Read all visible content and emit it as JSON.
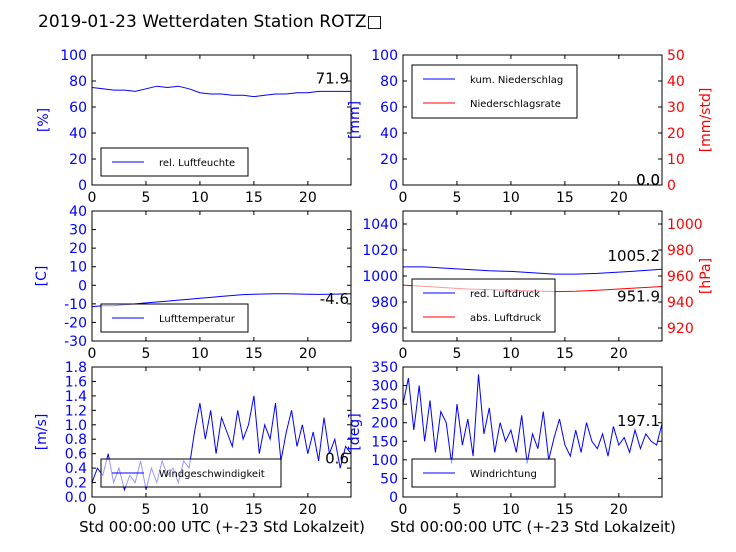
{
  "title": "2019-01-23 Wetterdaten Station ROTZ□",
  "xlabel": "Std 00:00:00 UTC (+-23 Std Lokalzeit)",
  "colors": {
    "primary": "#0000ff",
    "secondary": "#ff0000",
    "light": "#8080ff"
  },
  "chart_data": [
    {
      "id": "humidity",
      "type": "line",
      "ylabel": "[%]",
      "ylim": [
        0,
        100
      ],
      "yticks": [
        0,
        20,
        40,
        60,
        80,
        100
      ],
      "xlim": [
        0,
        24
      ],
      "xticks": [
        0,
        5,
        10,
        15,
        20
      ],
      "value_label": "71.9",
      "legend": "bottom-left",
      "series": [
        {
          "name": "rel. Luftfeuchte",
          "color": "#0000ff",
          "x": [
            0,
            1,
            2,
            3,
            4,
            5,
            6,
            7,
            8,
            9,
            10,
            11,
            12,
            13,
            14,
            15,
            16,
            17,
            18,
            19,
            20,
            21,
            22,
            24
          ],
          "y": [
            75,
            74,
            73,
            73,
            72,
            74,
            76,
            75,
            76,
            74,
            71,
            70,
            70,
            69,
            69,
            68,
            69,
            70,
            70,
            71,
            71,
            72,
            72,
            72
          ]
        }
      ]
    },
    {
      "id": "precip",
      "type": "line",
      "ylabel": "[mm]",
      "ylim": [
        0,
        100
      ],
      "yticks": [
        0,
        20,
        40,
        60,
        80,
        100
      ],
      "y2label": "[mm/std]",
      "y2lim": [
        0,
        50
      ],
      "y2ticks": [
        0,
        10,
        20,
        30,
        40,
        50
      ],
      "xlim": [
        0,
        24
      ],
      "xticks": [
        0,
        5,
        10,
        15,
        20
      ],
      "value_label": "0.0",
      "value_label2": "0.0",
      "legend": "top-left",
      "series": [
        {
          "name": "kum. Niederschlag",
          "color": "#0000ff",
          "axis": "left",
          "x": [
            0,
            24
          ],
          "y": [
            0,
            0
          ]
        },
        {
          "name": "Niederschlagsrate",
          "color": "#ff0000",
          "axis": "right",
          "x": [
            0,
            24
          ],
          "y": [
            0,
            0
          ]
        }
      ]
    },
    {
      "id": "temperature",
      "type": "line",
      "ylabel": "[C]",
      "ylim": [
        -30,
        40
      ],
      "yticks": [
        -30,
        -20,
        -10,
        0,
        10,
        20,
        30,
        40
      ],
      "xlim": [
        0,
        24
      ],
      "xticks": [
        0,
        5,
        10,
        15,
        20
      ],
      "value_label": "-4.6",
      "legend": "bottom-left",
      "series": [
        {
          "name": "Lufttemperatur",
          "color": "#0000ff",
          "x": [
            0,
            1,
            2,
            3,
            4,
            5,
            6,
            7,
            8,
            9,
            10,
            11,
            12,
            13,
            14,
            15,
            16,
            17,
            18,
            19,
            20,
            21,
            22,
            24
          ],
          "y": [
            -11.5,
            -11,
            -11,
            -10.5,
            -10,
            -9.5,
            -9,
            -8.5,
            -8,
            -7.5,
            -7,
            -6.5,
            -6,
            -5.5,
            -5,
            -4.8,
            -4.7,
            -4.6,
            -4.6,
            -4.7,
            -4.8,
            -4.9,
            -4.8,
            -4.6
          ]
        }
      ]
    },
    {
      "id": "pressure",
      "type": "line",
      "ylabel": "",
      "ylim": [
        950,
        1050
      ],
      "yticks": [
        960,
        980,
        1000,
        1020,
        1040
      ],
      "y2label": "[hPa]",
      "y2lim": [
        910,
        1010
      ],
      "y2ticks": [
        920,
        940,
        960,
        980,
        1000
      ],
      "xlim": [
        0,
        24
      ],
      "xticks": [
        0,
        5,
        10,
        15,
        20
      ],
      "value_label": "1005.2",
      "value_label2": "951.9",
      "legend": "bottom-left",
      "series": [
        {
          "name": "red. Luftdruck",
          "color": "#0000ff",
          "axis": "left",
          "x": [
            0,
            2,
            4,
            6,
            8,
            10,
            12,
            14,
            16,
            18,
            20,
            22,
            24
          ],
          "y": [
            1007,
            1007,
            1006,
            1005,
            1004,
            1003.5,
            1002.5,
            1001.5,
            1001.5,
            1002,
            1003,
            1004,
            1005.2
          ]
        },
        {
          "name": "abs. Luftdruck",
          "color": "#ff0000",
          "axis": "right",
          "x": [
            0,
            2,
            4,
            6,
            8,
            10,
            12,
            14,
            16,
            18,
            20,
            22,
            24
          ],
          "y": [
            953,
            952,
            951,
            950,
            949.5,
            949,
            948.5,
            948,
            948.2,
            949,
            950,
            951,
            951.9
          ]
        }
      ]
    },
    {
      "id": "wind-speed",
      "type": "line",
      "ylabel": "[m/s]",
      "ylim": [
        0,
        1.8
      ],
      "yticks": [
        0.0,
        0.2,
        0.4,
        0.6,
        0.8,
        1.0,
        1.2,
        1.4,
        1.6,
        1.8
      ],
      "xlim": [
        0,
        24
      ],
      "xticks": [
        0,
        5,
        10,
        15,
        20
      ],
      "value_label": "0.6",
      "legend": "bottom-left",
      "series": [
        {
          "name": "Windgeschwindigkeit",
          "color": "#0000ff",
          "x": [
            0,
            0.5,
            1,
            1.5,
            2,
            2.5,
            3,
            3.5,
            4,
            4.5,
            5,
            5.5,
            6,
            6.5,
            7,
            7.5,
            8,
            8.5,
            9,
            9.5,
            10,
            10.5,
            11,
            11.5,
            12,
            12.5,
            13,
            13.5,
            14,
            14.5,
            15,
            15.5,
            16,
            16.5,
            17,
            17.5,
            18,
            18.5,
            19,
            19.5,
            20,
            20.5,
            21,
            21.5,
            22,
            22.5,
            23,
            23.5,
            24
          ],
          "y": [
            0.2,
            0.4,
            0.3,
            0.6,
            0.2,
            0.4,
            0.1,
            0.3,
            0.2,
            0.5,
            0.1,
            0.4,
            0.2,
            0.5,
            0.3,
            0.4,
            0.2,
            0.5,
            0.4,
            0.9,
            1.3,
            0.8,
            1.2,
            0.6,
            1.1,
            0.9,
            0.7,
            1.2,
            0.8,
            1.0,
            1.4,
            0.6,
            1.0,
            0.8,
            1.3,
            0.5,
            0.9,
            1.2,
            0.7,
            1.0,
            0.6,
            0.9,
            0.5,
            1.1,
            0.6,
            0.8,
            0.4,
            0.7,
            0.6
          ]
        }
      ]
    },
    {
      "id": "wind-direction",
      "type": "line",
      "ylabel": "[deg]",
      "ylim": [
        0,
        350
      ],
      "yticks": [
        0,
        50,
        100,
        150,
        200,
        250,
        300,
        350
      ],
      "xlim": [
        0,
        24
      ],
      "xticks": [
        0,
        5,
        10,
        15,
        20
      ],
      "value_label": "197.1",
      "legend": "bottom-left",
      "series": [
        {
          "name": "Windrichtung",
          "color": "#0000ff",
          "x": [
            0,
            0.5,
            1,
            1.5,
            2,
            2.5,
            3,
            3.5,
            4,
            4.5,
            5,
            5.5,
            6,
            6.5,
            7,
            7.5,
            8,
            8.5,
            9,
            9.5,
            10,
            10.5,
            11,
            11.5,
            12,
            12.5,
            13,
            13.5,
            14,
            14.5,
            15,
            15.5,
            16,
            16.5,
            17,
            17.5,
            18,
            18.5,
            19,
            19.5,
            20,
            20.5,
            21,
            21.5,
            22,
            22.5,
            23,
            23.5,
            24
          ],
          "y": [
            250,
            320,
            180,
            300,
            150,
            260,
            120,
            230,
            200,
            90,
            250,
            140,
            210,
            110,
            330,
            170,
            240,
            120,
            200,
            150,
            180,
            120,
            220,
            90,
            170,
            130,
            230,
            100,
            160,
            210,
            140,
            110,
            180,
            120,
            200,
            150,
            130,
            170,
            110,
            190,
            140,
            160,
            120,
            180,
            130,
            170,
            150,
            140,
            197
          ]
        }
      ]
    }
  ]
}
